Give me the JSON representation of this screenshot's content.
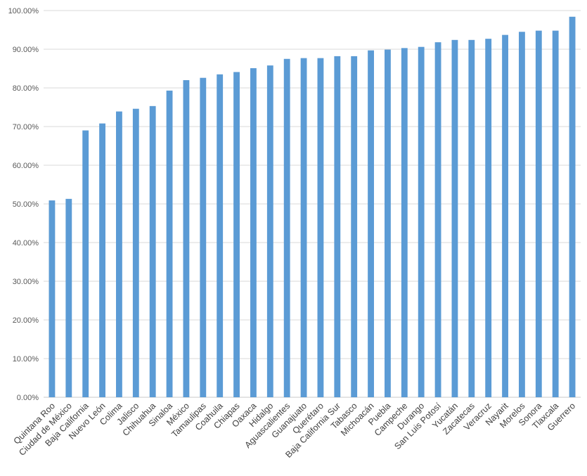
{
  "chart_data": {
    "type": "bar",
    "title": "",
    "xlabel": "",
    "ylabel": "",
    "ylim": [
      0,
      100
    ],
    "yticks": [
      "0.00%",
      "10.00%",
      "20.00%",
      "30.00%",
      "40.00%",
      "50.00%",
      "60.00%",
      "70.00%",
      "80.00%",
      "90.00%",
      "100.00%"
    ],
    "grid": true,
    "legend": "none",
    "bar_color": "#5B9BD5",
    "categories": [
      "Quintana Roo",
      "Ciudad de México",
      "Baja California",
      "Nuevo León",
      "Colima",
      "Jalisco",
      "Chihuahua",
      "Sinaloa",
      "México",
      "Tamaulipas",
      "Coahuila",
      "Chiapas",
      "Oaxaca",
      "Hidalgo",
      "Aguascalientes",
      "Guanajuato",
      "Querétaro",
      "Baja California Sur",
      "Tabasco",
      "Michoacán",
      "Puebla",
      "Campeche",
      "Durango",
      "San Luis Potosí",
      "Yucatán",
      "Zacatecas",
      "Veracruz",
      "Nayarit",
      "Morelos",
      "Sonora",
      "Tlaxcala",
      "Guerrero"
    ],
    "values": [
      50.9,
      51.3,
      69.0,
      70.8,
      73.9,
      74.6,
      75.3,
      79.3,
      82.0,
      82.6,
      83.5,
      84.1,
      85.1,
      85.8,
      87.5,
      87.7,
      87.7,
      88.2,
      88.2,
      89.7,
      89.9,
      90.3,
      90.6,
      91.8,
      92.4,
      92.4,
      92.7,
      93.7,
      94.5,
      94.8,
      94.8,
      98.4
    ]
  }
}
